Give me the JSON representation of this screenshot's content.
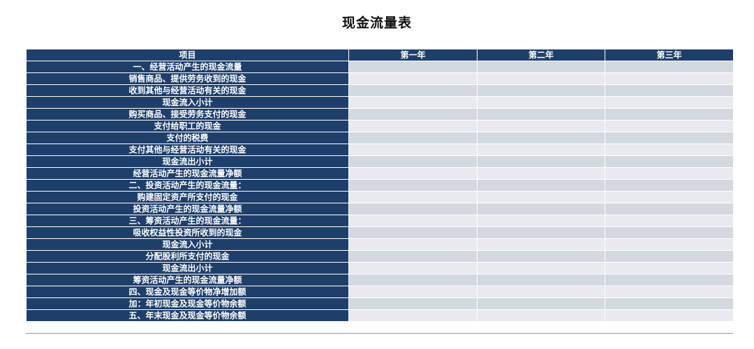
{
  "title": "现金流量表",
  "table": {
    "headers": [
      "项目",
      "第一年",
      "第二年",
      "第三年"
    ],
    "rows": [
      "一、经营活动产生的现金流量",
      "销售商品、提供劳务收到的现金",
      "收到其他与经营活动有关的现金",
      "现金流入小计",
      "购买商品、接受劳务支付的现金",
      "支付给职工的现金",
      "支付的税费",
      "支付其他与经营活动有关的现金",
      "现金流出小计",
      "经营活动产生的现金流量净额",
      "二、投资活动产生的现金流量：",
      "购建固定资产所支付的现金",
      "投资活动产生的现金流量净额",
      "三、筹资活动产生的现金流量：",
      "吸收权益性投资所收到的现金",
      "现金流入小计",
      "分配股利所支付的现金",
      "现金流出小计",
      "筹资活动产生的现金流量净额",
      "四、现金及现金等价物净增加额",
      "加：年初现金及现金等价物余额",
      "五、年末现金及现金等价物余额"
    ]
  },
  "colors": {
    "header_bg": "#1f3f6b",
    "row_odd": "#d4d8e0",
    "row_even": "#e8eaef"
  }
}
